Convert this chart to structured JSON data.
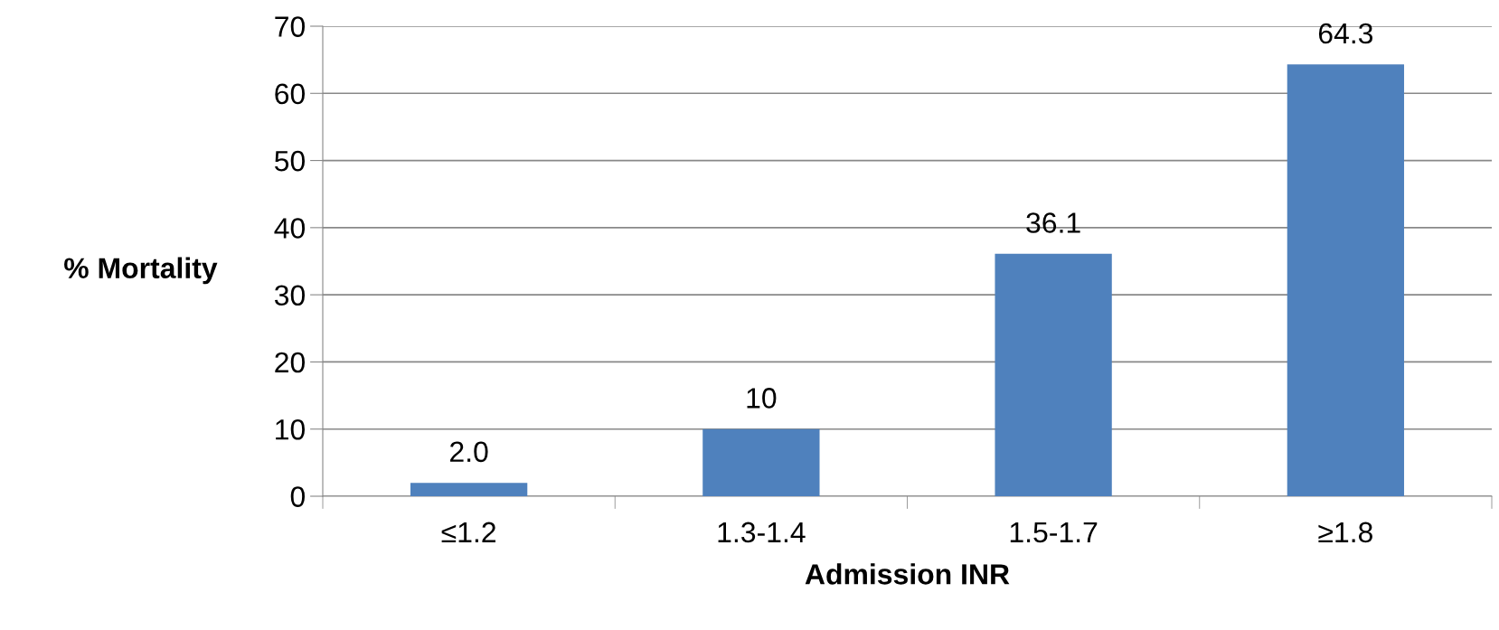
{
  "chart_data": {
    "type": "bar",
    "xlabel": "Admission INR",
    "ylabel": "% Mortality",
    "categories": [
      "≤1.2",
      "1.3-1.4",
      "1.5-1.7",
      "≥1.8"
    ],
    "values": [
      2.0,
      10,
      36.1,
      64.3
    ],
    "value_labels": [
      "2.0",
      "10",
      "36.1",
      "64.3"
    ],
    "color": "#4f81bd",
    "ylim": [
      0,
      70
    ],
    "yticks": [
      0,
      10,
      20,
      30,
      40,
      50,
      60,
      70
    ],
    "grid": "y",
    "legend": false
  }
}
